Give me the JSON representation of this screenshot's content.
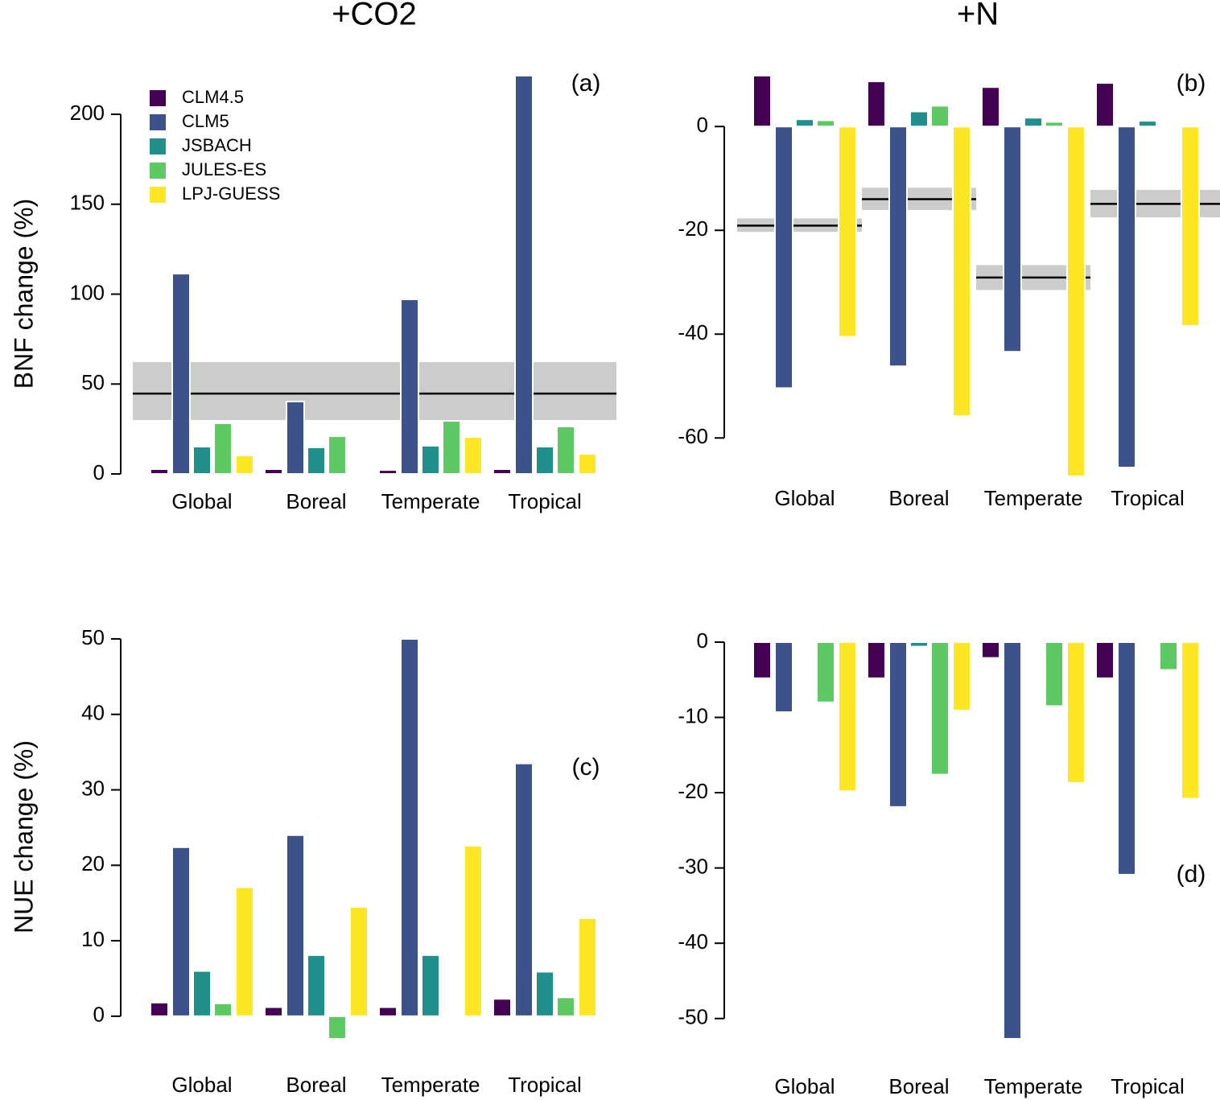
{
  "chart_data": [
    {
      "type": "bar",
      "title": "+CO2",
      "ylabel": "BNF change (%)",
      "label": "(a)",
      "legend": "top-left",
      "categories": [
        "Global",
        "Boreal",
        "Temperate",
        "Tropical"
      ],
      "series": [
        {
          "name": "CLM4.5",
          "color": "#440154",
          "values": [
            2.7,
            2.7,
            2.2,
            2.7
          ]
        },
        {
          "name": "CLM5",
          "color": "#3b528b",
          "values": [
            111.4,
            40.3,
            97.1,
            221.5
          ]
        },
        {
          "name": "JSBACH",
          "color": "#21908c",
          "values": [
            15.2,
            14.8,
            15.7,
            15.2
          ]
        },
        {
          "name": "JULES-ES",
          "color": "#5ec962",
          "values": [
            28.2,
            21.0,
            29.5,
            26.4
          ]
        },
        {
          "name": "LPJ-GUESS",
          "color": "#fde725",
          "values": [
            10.3,
            null,
            20.6,
            11.2
          ]
        }
      ],
      "band": {
        "value": 44.7,
        "low": 30.0,
        "high": 62.2
      },
      "ylim": [
        0,
        221.5
      ],
      "yticks": [
        0,
        50,
        100,
        150,
        200
      ]
    },
    {
      "type": "bar",
      "title": "+N",
      "label": "(b)",
      "categories": [
        "Global",
        "Boreal",
        "Temperate",
        "Tropical"
      ],
      "series": [
        {
          "color": "#440154",
          "values": [
            9.8,
            8.7,
            7.6,
            8.4
          ]
        },
        {
          "color": "#3b528b",
          "values": [
            -50.4,
            -46.2,
            -43.4,
            -65.7
          ]
        },
        {
          "color": "#21908c",
          "values": [
            1.4,
            2.9,
            1.7,
            1.1
          ]
        },
        {
          "color": "#5ec962",
          "values": [
            1.2,
            4.0,
            0.9,
            0.3
          ]
        },
        {
          "color": "#fde725",
          "values": [
            -40.5,
            -55.8,
            -67.4,
            -38.4
          ]
        }
      ],
      "bands": [
        {
          "value": -19.1,
          "low": -20.3,
          "high": -17.7
        },
        {
          "value": -14.0,
          "low": -16.1,
          "high": -11.8
        },
        {
          "value": -29.1,
          "low": -31.5,
          "high": -26.7
        },
        {
          "value": -14.9,
          "low": -17.5,
          "high": -12.2
        }
      ],
      "ylim": [
        -67.4,
        9.8
      ],
      "yticks": [
        0,
        -20,
        -40,
        -60
      ]
    },
    {
      "type": "bar",
      "ylabel": "NUE change (%)",
      "label": "(c)",
      "categories": [
        "Global",
        "Boreal",
        "Temperate",
        "Tropical"
      ],
      "series": [
        {
          "color": "#440154",
          "values": [
            1.8,
            1.2,
            1.2,
            2.3
          ]
        },
        {
          "color": "#3b528b",
          "values": [
            22.4,
            24.0,
            50.0,
            33.5
          ]
        },
        {
          "color": "#21908c",
          "values": [
            6.0,
            8.1,
            8.1,
            5.9
          ]
        },
        {
          "color": "#5ec962",
          "values": [
            1.7,
            -3.0,
            null,
            2.5
          ]
        },
        {
          "color": "#fde725",
          "values": [
            17.1,
            14.5,
            22.6,
            13.0
          ]
        }
      ],
      "ylim": [
        -3,
        50
      ],
      "yticks": [
        0,
        10,
        20,
        30,
        40,
        50
      ]
    },
    {
      "type": "bar",
      "label": "(d)",
      "categories": [
        "Global",
        "Boreal",
        "Temperate",
        "Tropical"
      ],
      "series": [
        {
          "color": "#440154",
          "values": [
            -4.8,
            -4.8,
            -2.1,
            -4.8
          ]
        },
        {
          "color": "#3b528b",
          "values": [
            -9.3,
            -21.9,
            -52.7,
            -30.9
          ]
        },
        {
          "color": "#21908c",
          "values": [
            -0.2,
            -0.6,
            null,
            null
          ]
        },
        {
          "color": "#5ec962",
          "values": [
            -8.0,
            -17.6,
            -8.5,
            -3.7
          ]
        },
        {
          "color": "#fde725",
          "values": [
            -19.8,
            -9.1,
            -18.7,
            -20.8
          ]
        }
      ],
      "ylim": [
        -52.7,
        0
      ],
      "yticks": [
        0,
        -10,
        -20,
        -30,
        -40,
        -50
      ]
    }
  ]
}
